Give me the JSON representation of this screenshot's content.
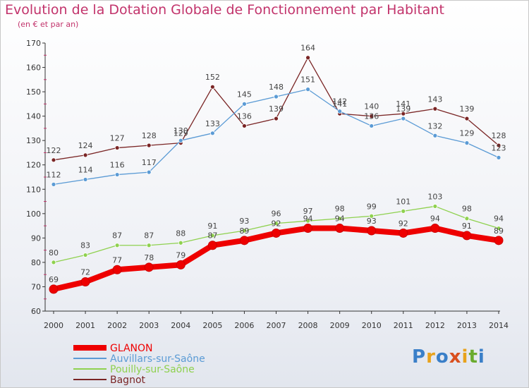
{
  "title": "Evolution de la Dotation Globale de Fonctionnement par Habitant",
  "subtitle": "(en € et par an)",
  "logo": "Proxiti",
  "chart_data": {
    "type": "line",
    "title": "Evolution de la Dotation Globale de Fonctionnement par Habitant",
    "subtitle": "(en € et par an)",
    "x": [
      2000,
      2001,
      2002,
      2003,
      2004,
      2005,
      2006,
      2007,
      2008,
      2009,
      2010,
      2011,
      2012,
      2013,
      2014
    ],
    "ylim": [
      60,
      170
    ],
    "yticks": [
      60,
      70,
      80,
      90,
      100,
      110,
      120,
      130,
      140,
      150,
      160,
      170
    ],
    "grid": false,
    "legend_position": "bottom-left",
    "series": [
      {
        "name": "GLANON",
        "color": "#ee0000",
        "values": [
          69,
          72,
          77,
          78,
          79,
          87,
          89,
          92,
          94,
          94,
          93,
          92,
          94,
          91,
          89
        ]
      },
      {
        "name": "Auvillars-sur-Saône",
        "color": "#5b9bd5",
        "values": [
          112,
          114,
          116,
          117,
          130,
          133,
          145,
          148,
          151,
          142,
          136,
          139,
          132,
          129,
          123
        ]
      },
      {
        "name": "Pouilly-sur-Saône",
        "color": "#8fd14f",
        "values": [
          80,
          83,
          87,
          87,
          88,
          91,
          93,
          96,
          97,
          98,
          99,
          101,
          103,
          98,
          94
        ]
      },
      {
        "name": "Bagnot",
        "color": "#7a2525",
        "values": [
          122,
          124,
          127,
          128,
          129,
          152,
          136,
          139,
          164,
          141,
          140,
          141,
          143,
          139,
          128
        ]
      }
    ]
  }
}
